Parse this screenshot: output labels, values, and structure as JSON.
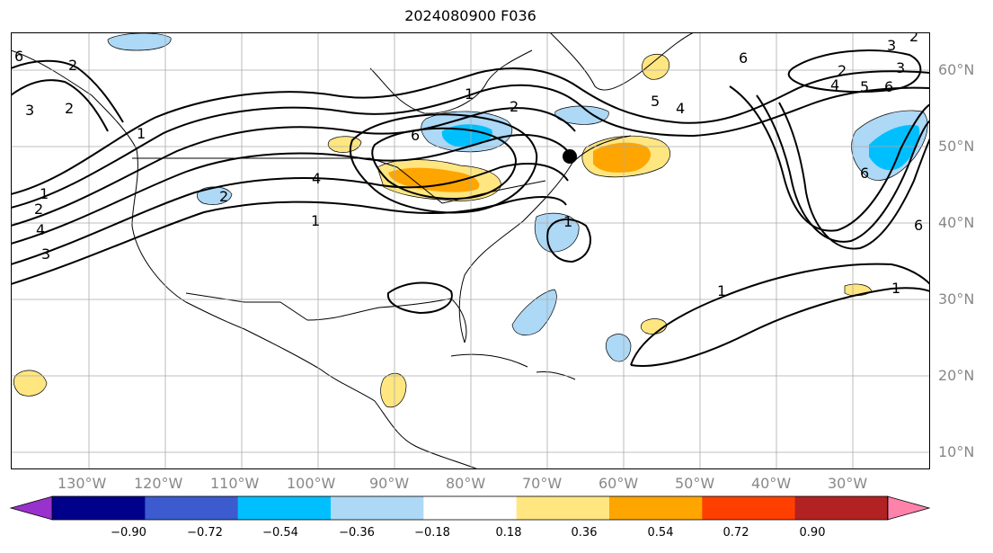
{
  "title": "2024080900 F036",
  "lat_labels": [
    "60°N",
    "50°N",
    "40°N",
    "30°N",
    "20°N",
    "10°N"
  ],
  "lon_labels": [
    "130°W",
    "120°W",
    "110°W",
    "100°W",
    "90°W",
    "80°W",
    "70°W",
    "60°W",
    "50°W",
    "40°W",
    "30°W"
  ],
  "colorbar": {
    "levels": [
      "−0.90",
      "−0.72",
      "−0.54",
      "−0.36",
      "−0.18",
      "0.18",
      "0.36",
      "0.54",
      "0.72",
      "0.90"
    ],
    "colors": [
      "#9932cc",
      "#00008b",
      "#3b5bcf",
      "#00bfff",
      "#add8f6",
      "#ffffff",
      "#ffe680",
      "#ffa500",
      "#ff3f00",
      "#b22222",
      "#ff82ab"
    ]
  },
  "contour_labels": [
    "6",
    "2",
    "3",
    "1",
    "4",
    "2",
    "2",
    "1",
    "2",
    "6",
    "4",
    "1",
    "3",
    "2",
    "6",
    "4",
    "5",
    "6",
    "3",
    "2",
    "3",
    "4",
    "5",
    "6",
    "6",
    "1",
    "1",
    "1",
    "1",
    "2"
  ],
  "map_style": {
    "land_outline_color": "#000000",
    "grid_color": "#aaaaaa",
    "contour_color": "#000000"
  }
}
